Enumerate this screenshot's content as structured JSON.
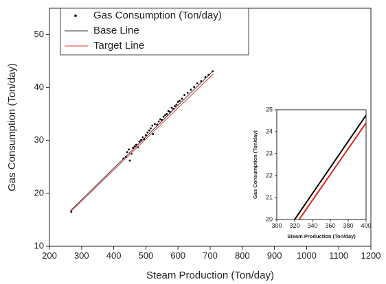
{
  "chart_data": [
    {
      "type": "scatter",
      "x_label": "Steam Production (Ton/day)",
      "y_label": "Gas Consumption (Ton/day)",
      "xlim": [
        200,
        1200
      ],
      "xticks": [
        200,
        300,
        400,
        500,
        600,
        700,
        800,
        900,
        1000,
        1100,
        1200
      ],
      "ylim": [
        10,
        55
      ],
      "yticks": [
        10,
        20,
        30,
        40,
        50
      ],
      "legend": "upper left",
      "series": [
        {
          "name": "Gas Consumption (Ton/day)",
          "mode": "markers",
          "color": "#000000",
          "x": [
            268,
            430,
            438,
            442,
            447,
            450,
            455,
            460,
            465,
            470,
            475,
            480,
            485,
            490,
            495,
            500,
            505,
            510,
            515,
            520,
            522,
            528,
            535,
            540,
            545,
            550,
            555,
            560,
            565,
            570,
            575,
            580,
            585,
            590,
            595,
            600,
            605,
            612,
            620,
            630,
            640,
            650,
            660,
            672,
            685,
            695,
            708
          ],
          "values": [
            16.5,
            26.6,
            26.9,
            27.8,
            28.3,
            26.2,
            27.5,
            28.6,
            28.9,
            29.2,
            28.7,
            29.8,
            30.1,
            30.6,
            30.2,
            31.0,
            31.5,
            31.9,
            32.3,
            32.8,
            31.2,
            33.1,
            33.0,
            33.6,
            34.0,
            33.9,
            34.5,
            34.8,
            35.0,
            35.6,
            35.4,
            36.2,
            36.0,
            36.5,
            36.8,
            37.3,
            37.5,
            37.9,
            38.6,
            39.0,
            39.6,
            40.1,
            40.8,
            41.2,
            42.0,
            42.4,
            43.1
          ]
        },
        {
          "name": "Base Line",
          "mode": "lines",
          "color": "#333333",
          "x": [
            265,
            710
          ],
          "values": [
            16.7,
            43.2
          ]
        },
        {
          "name": "Target Line",
          "mode": "lines",
          "color": "#e03030",
          "x": [
            265,
            710
          ],
          "values": [
            16.5,
            42.6
          ]
        }
      ]
    },
    {
      "type": "line",
      "x_label": "Steam Production (Ton/day)",
      "y_label": "Gas Consumption (Ton/day)",
      "xlim": [
        300,
        400
      ],
      "xticks": [
        300,
        320,
        340,
        360,
        380,
        400
      ],
      "ylim": [
        20,
        25
      ],
      "yticks": [
        20,
        21,
        22,
        23,
        24,
        25
      ],
      "series": [
        {
          "mode": "lines",
          "color": "#000000",
          "x": [
            320,
            400
          ],
          "values": [
            20,
            24.75
          ]
        },
        {
          "mode": "lines",
          "color": "#e02020",
          "x": [
            325,
            400
          ],
          "values": [
            20,
            24.4
          ]
        }
      ]
    }
  ]
}
